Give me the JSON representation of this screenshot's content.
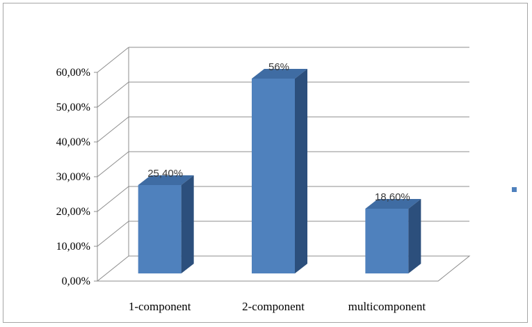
{
  "chart_data": {
    "type": "bar",
    "title": "",
    "xlabel": "",
    "ylabel": "",
    "categories": [
      "1-component",
      "2-component",
      "multicomponent"
    ],
    "series": [
      {
        "values": [
          25.4,
          56,
          18.6
        ],
        "color": "#4f81bd"
      }
    ],
    "data_labels": [
      "25,40%",
      "56%",
      "18,60%"
    ],
    "y_ticks": [
      "0,00%",
      "10,00%",
      "20,00%",
      "30,00%",
      "40,00%",
      "50,00%",
      "60,00%"
    ],
    "ylim": [
      0,
      60
    ],
    "grid": true,
    "style": "3d-column",
    "legend": {
      "position": "right",
      "marker_color": "#4f81bd"
    }
  }
}
